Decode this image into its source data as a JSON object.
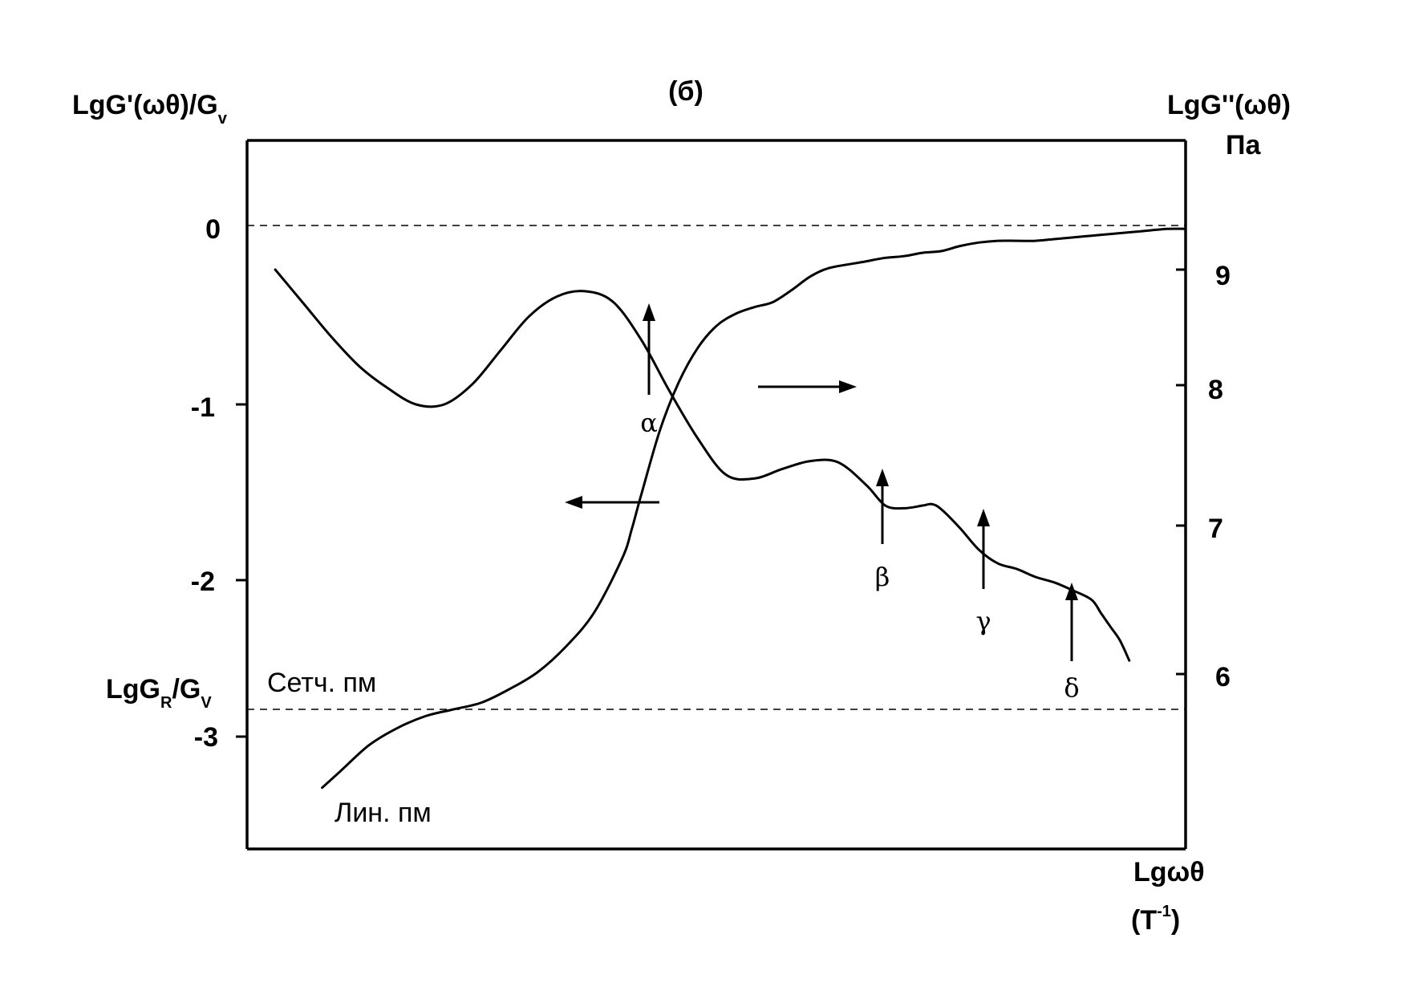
{
  "chart_data": {
    "type": "line",
    "title": "(б)",
    "y_left_label": {
      "main": "LgG'(ωθ)/G",
      "sub": "v"
    },
    "y_right_label": {
      "line1": "LgG''(ωθ)",
      "line2": "Па"
    },
    "x_label": {
      "line1": "Lgωθ",
      "line2_base": "(T",
      "line2_sup": "-1",
      "line2_end": ")"
    },
    "y_left_ticks": [
      "0",
      "-1",
      "-2",
      "-3"
    ],
    "y_right_ticks": [
      "9",
      "8",
      "7",
      "6"
    ],
    "reference_line_left": {
      "label_main": "LgG",
      "label_sub1": "R",
      "label_mid": "/G",
      "label_sub2": "V",
      "value": -2.8
    },
    "reference_line_zero": 0,
    "annotations": {
      "network": "Сетч. пм",
      "linear": "Лин. пм"
    },
    "transition_labels": [
      "α",
      "β",
      "γ",
      "δ"
    ],
    "series": [
      {
        "axis": "left",
        "x": [
          0.08,
          0.1,
          0.13,
          0.16,
          0.19,
          0.22,
          0.25,
          0.28,
          0.31,
          0.34,
          0.37,
          0.4,
          0.41,
          0.42,
          0.44,
          0.46,
          0.48,
          0.5,
          0.52,
          0.54,
          0.56,
          0.58,
          0.6,
          0.62,
          0.65,
          0.66,
          0.68,
          0.7,
          0.72,
          0.74,
          0.76,
          0.78,
          0.8,
          0.82,
          0.84,
          0.86,
          0.88,
          0.9,
          0.92,
          0.94,
          0.96,
          0.98,
          1.0
        ],
        "y": [
          -3.3,
          -3.2,
          -3.05,
          -2.95,
          -2.88,
          -2.84,
          -2.8,
          -2.72,
          -2.62,
          -2.47,
          -2.27,
          -1.95,
          -1.78,
          -1.58,
          -1.2,
          -0.92,
          -0.72,
          -0.59,
          -0.52,
          -0.48,
          -0.45,
          -0.38,
          -0.3,
          -0.25,
          -0.22,
          -0.21,
          -0.19,
          -0.18,
          -0.16,
          -0.15,
          -0.12,
          -0.1,
          -0.09,
          -0.09,
          -0.09,
          -0.08,
          -0.07,
          -0.06,
          -0.05,
          -0.04,
          -0.03,
          -0.02,
          -0.02
        ]
      },
      {
        "axis": "right",
        "x": [
          0.03,
          0.06,
          0.09,
          0.12,
          0.15,
          0.18,
          0.21,
          0.24,
          0.27,
          0.3,
          0.33,
          0.36,
          0.39,
          0.42,
          0.45,
          0.48,
          0.51,
          0.54,
          0.57,
          0.6,
          0.63,
          0.66,
          0.68,
          0.7,
          0.72,
          0.73,
          0.74,
          0.76,
          0.78,
          0.8,
          0.82,
          0.84,
          0.86,
          0.88,
          0.9,
          0.91,
          0.92,
          0.93,
          0.94
        ],
        "y": [
          9.0,
          8.75,
          8.5,
          8.28,
          8.12,
          8.0,
          8.0,
          8.15,
          8.4,
          8.65,
          8.8,
          8.84,
          8.76,
          8.48,
          8.1,
          7.75,
          7.48,
          7.45,
          7.52,
          7.58,
          7.57,
          7.4,
          7.25,
          7.23,
          7.25,
          7.26,
          7.22,
          7.08,
          6.92,
          6.82,
          6.78,
          6.72,
          6.68,
          6.62,
          6.55,
          6.45,
          6.35,
          6.25,
          6.1
        ]
      }
    ],
    "direction_arrows": [
      "left",
      "right"
    ]
  }
}
